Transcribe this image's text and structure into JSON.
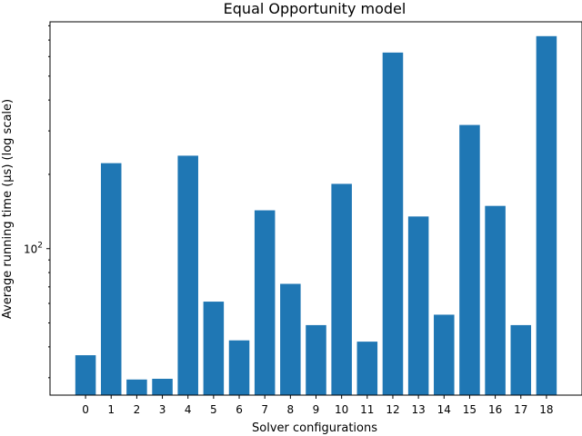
{
  "chart_data": {
    "type": "bar",
    "title": "Equal Opportunity model",
    "xlabel": "Solver configurations",
    "ylabel": "Average running time (μs) (log scale)",
    "yscale": "log",
    "ylim": [
      25.5,
      830
    ],
    "y_tick_labels": [
      {
        "value": 100,
        "base": "10",
        "exp": "2"
      }
    ],
    "categories": [
      "0",
      "1",
      "2",
      "3",
      "4",
      "5",
      "6",
      "7",
      "8",
      "9",
      "10",
      "11",
      "12",
      "13",
      "14",
      "15",
      "16",
      "17",
      "18"
    ],
    "values": [
      37,
      222,
      29.5,
      29.7,
      238,
      61,
      42.5,
      143,
      72,
      49,
      183,
      42,
      623,
      135,
      54,
      317,
      149,
      49,
      726
    ],
    "bar_color": "#1f77b4",
    "grid": false
  }
}
